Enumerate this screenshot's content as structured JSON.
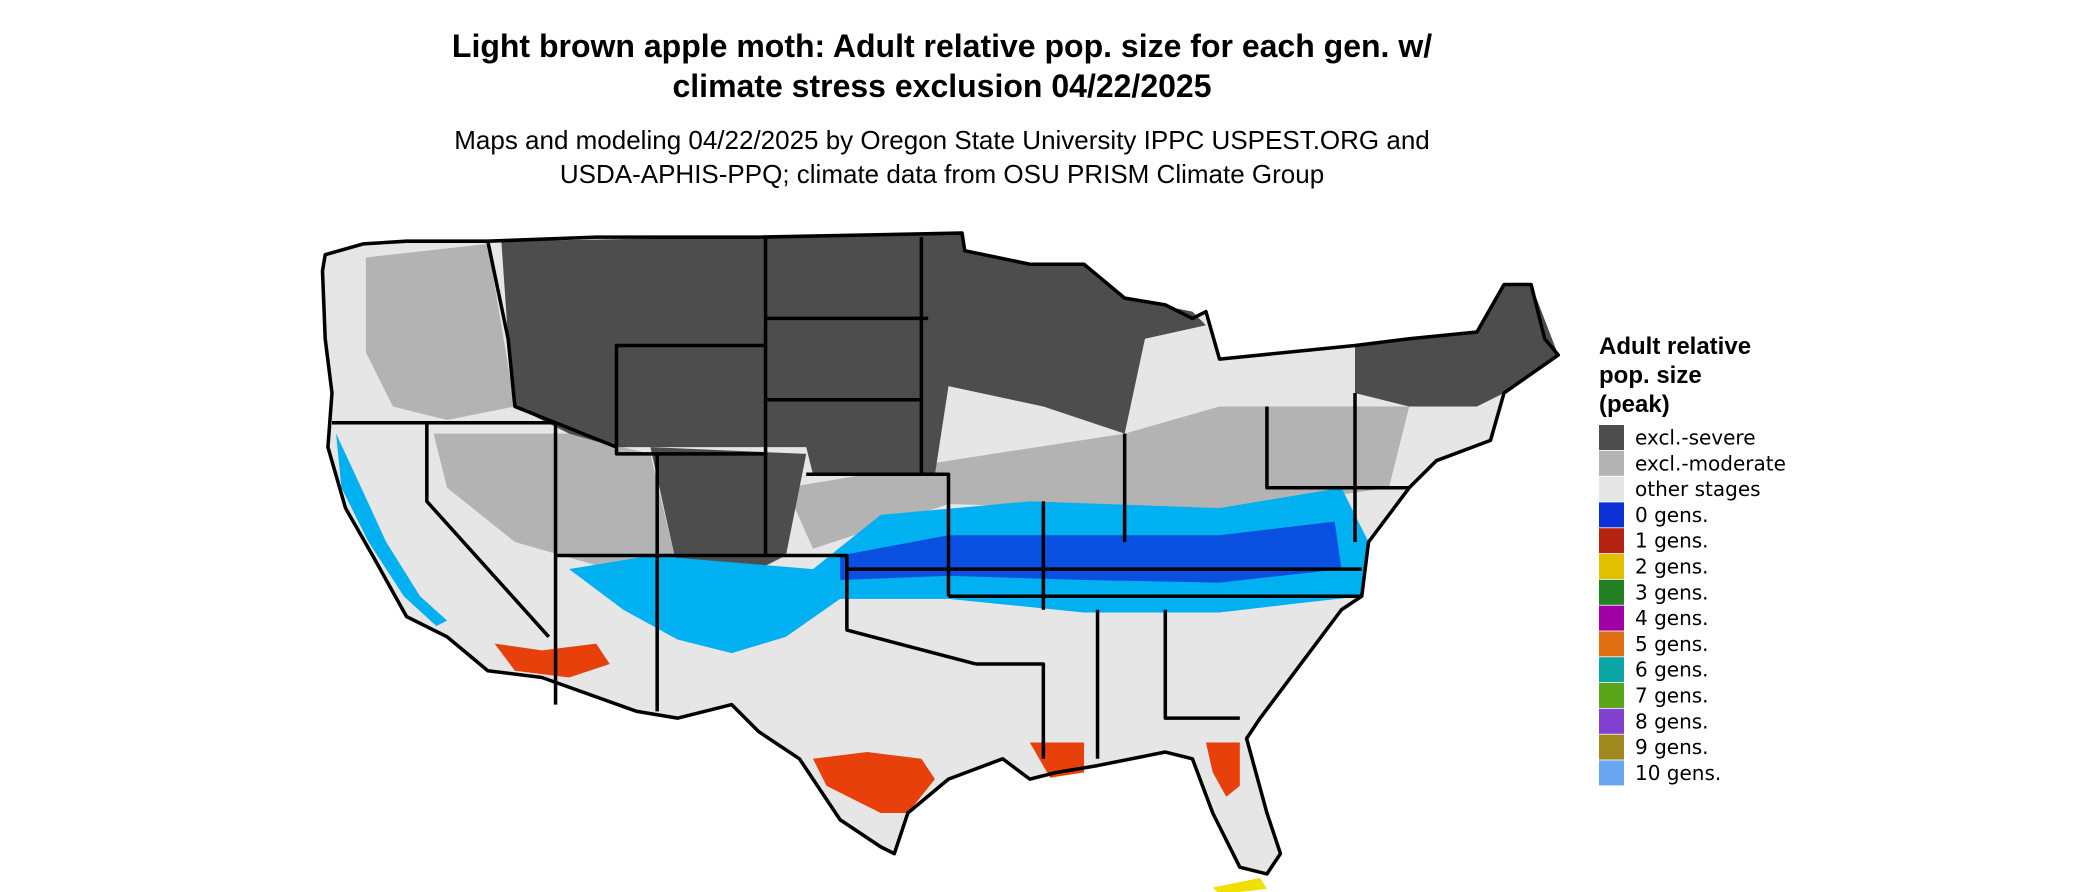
{
  "header": {
    "title_lines": [
      "Light brown apple moth: Adult relative pop. size for each gen. w/",
      "climate stress exclusion 04/22/2025"
    ],
    "subtitle_lines": [
      "Maps and modeling 04/22/2025 by Oregon State University IPPC USPEST.ORG and",
      "USDA-APHIS-PPQ; climate data from OSU PRISM Climate Group"
    ]
  },
  "legend": {
    "title_lines": [
      "Adult relative",
      "pop. size",
      "(peak)"
    ],
    "items": [
      {
        "label": "excl.-severe",
        "color": "#4d4d4d"
      },
      {
        "label": "excl.-moderate",
        "color": "#b3b3b3"
      },
      {
        "label": "other stages",
        "color": "#e6e6e6"
      },
      {
        "label": "0 gens.",
        "color": "#0a30d6"
      },
      {
        "label": "1 gens.",
        "color": "#b3230f"
      },
      {
        "label": "2 gens.",
        "color": "#e0c000"
      },
      {
        "label": "3 gens.",
        "color": "#238022"
      },
      {
        "label": "4 gens.",
        "color": "#a000a6"
      },
      {
        "label": "5 gens.",
        "color": "#e06e12"
      },
      {
        "label": "6 gens.",
        "color": "#0aa6a6"
      },
      {
        "label": "7 gens.",
        "color": "#5aa51a"
      },
      {
        "label": "8 gens.",
        "color": "#8040d0"
      },
      {
        "label": "9 gens.",
        "color": "#a08a20"
      },
      {
        "label": "10 gens.",
        "color": "#6aa6f0"
      }
    ]
  }
}
